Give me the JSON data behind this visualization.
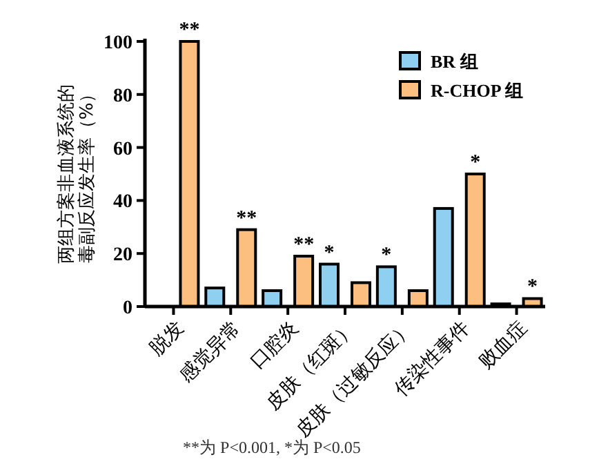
{
  "chart_data": {
    "type": "bar",
    "ylabel": "两组方案非血液系统的毒副反应发生率（%）",
    "categories": [
      "脱发",
      "感觉异常",
      "口腔炎",
      "皮肤（红斑）",
      "皮肤（过敏反应）",
      "传染性事件",
      "败血症"
    ],
    "series": [
      {
        "name": "BR 组",
        "color": "#8fd0f0",
        "values": [
          0,
          7,
          6,
          16,
          15,
          37,
          1
        ]
      },
      {
        "name": "R-CHOP 组",
        "color": "#fcbf80",
        "values": [
          100,
          29,
          19,
          9,
          6,
          50,
          3
        ]
      }
    ],
    "ylim": [
      0,
      100
    ],
    "yticks": [
      0,
      20,
      40,
      60,
      80,
      100
    ],
    "legend": "top right",
    "annotations": [
      "**",
      "**",
      "**",
      "*",
      "*",
      "*",
      "*",
      "**为 P<0.001, *为 P<0.05"
    ]
  }
}
